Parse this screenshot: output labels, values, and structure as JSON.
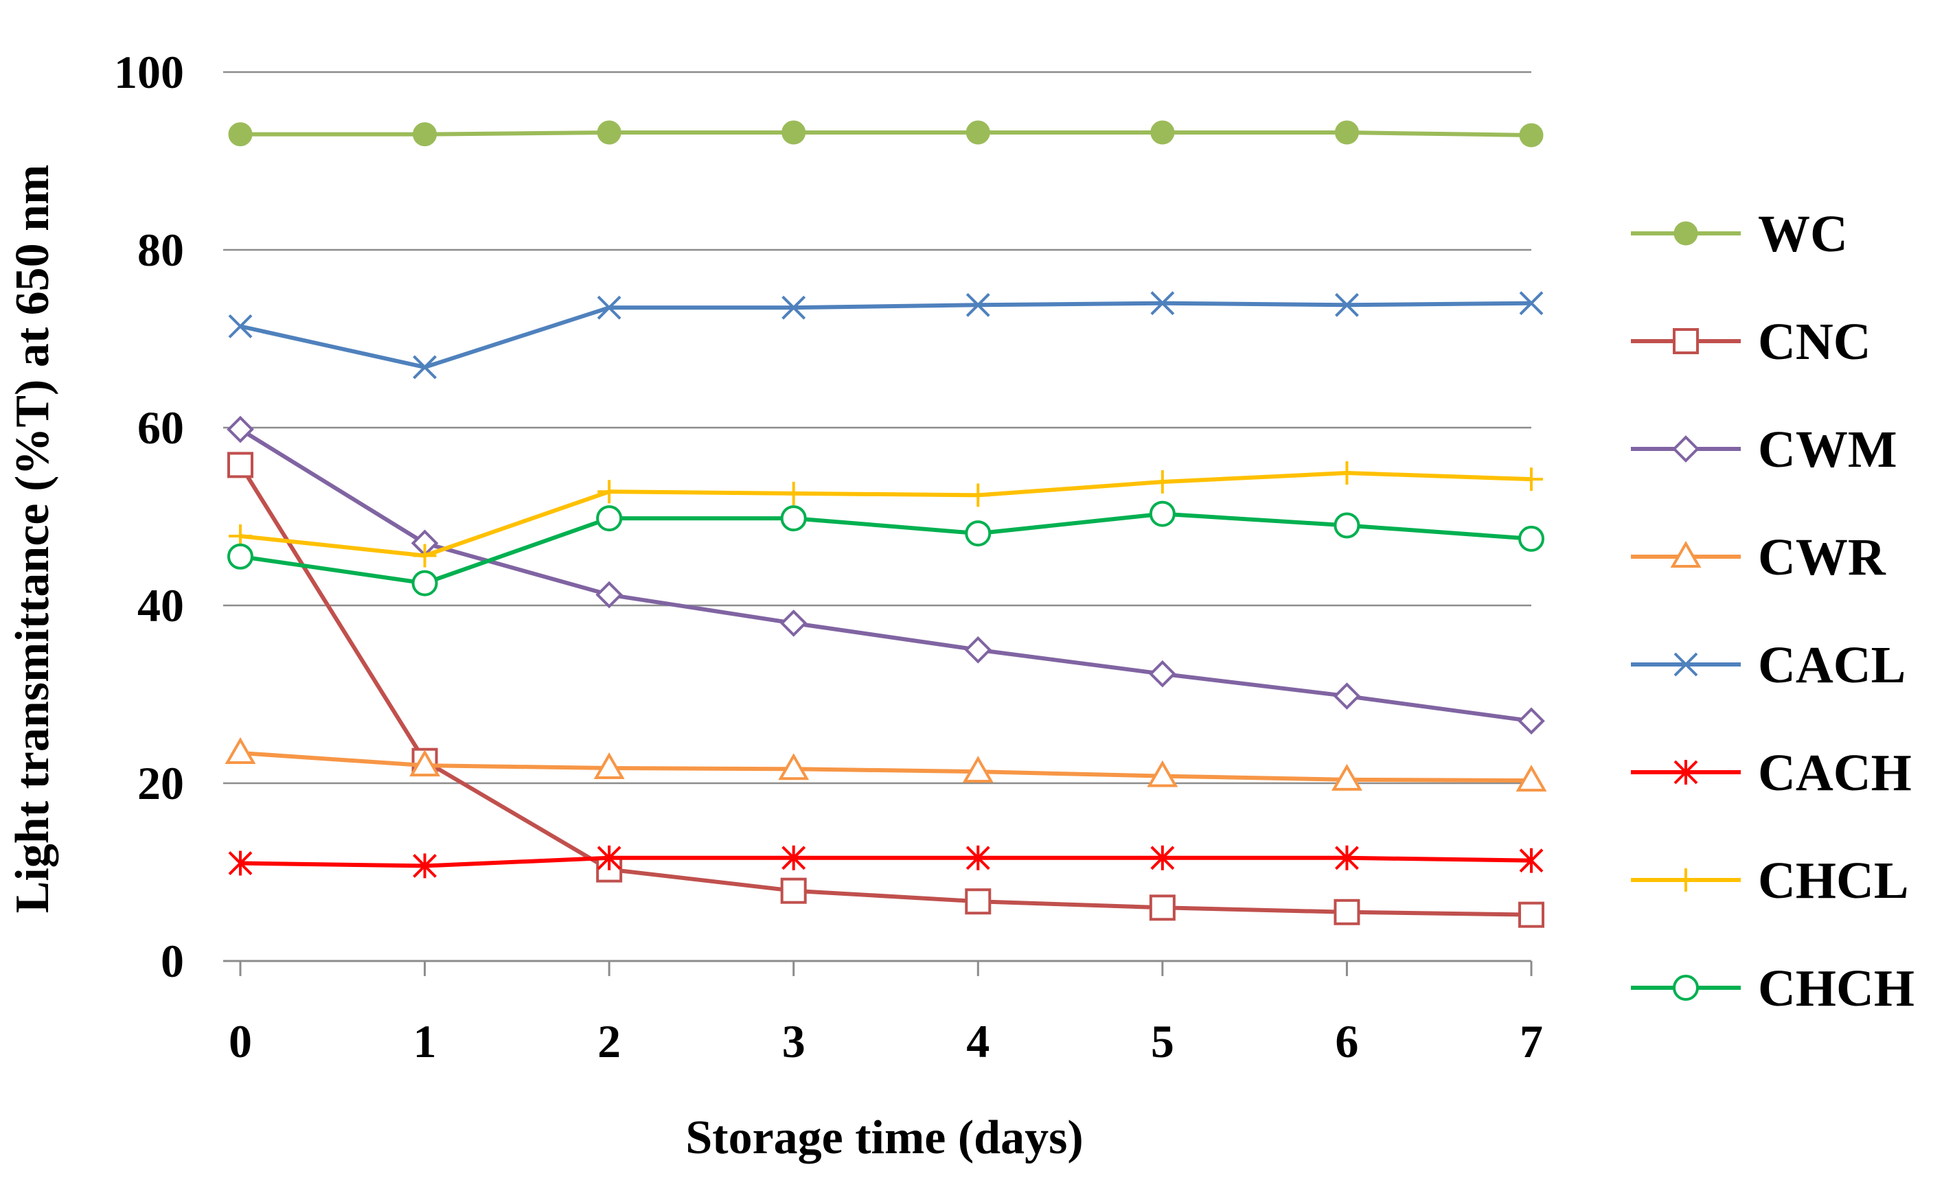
{
  "chart_data": {
    "type": "line",
    "title": "",
    "xlabel": "Storage time (days)",
    "ylabel": "Light transmittance (%T) at 650 nm",
    "x": [
      0,
      1,
      2,
      3,
      4,
      5,
      6,
      7
    ],
    "xlim": [
      0,
      7
    ],
    "ylim": [
      0,
      100
    ],
    "yticks": [
      0,
      20,
      40,
      60,
      80,
      100
    ],
    "grid": true,
    "legend_position": "right",
    "series": [
      {
        "name": "WC",
        "color": "#9BBB59",
        "marker": "filled-circle",
        "values": [
          93,
          93,
          93.2,
          93.2,
          93.2,
          93.2,
          93.2,
          92.9
        ]
      },
      {
        "name": "CNC",
        "color": "#C0504D",
        "marker": "square",
        "values": [
          55.8,
          22.5,
          10.3,
          7.9,
          6.7,
          6.0,
          5.5,
          5.2
        ]
      },
      {
        "name": "CWM",
        "color": "#8064A2",
        "marker": "diamond",
        "values": [
          59.8,
          47.0,
          41.2,
          38.0,
          35.0,
          32.3,
          29.8,
          27.0
        ]
      },
      {
        "name": "CWR",
        "color": "#F79646",
        "marker": "triangle",
        "values": [
          23.4,
          22.0,
          21.7,
          21.6,
          21.3,
          20.8,
          20.4,
          20.3
        ]
      },
      {
        "name": "CACL",
        "color": "#4F81BD",
        "marker": "x",
        "values": [
          71.4,
          66.8,
          73.5,
          73.5,
          73.8,
          74.0,
          73.8,
          74.0
        ]
      },
      {
        "name": "CACH",
        "color": "#FF0000",
        "marker": "star",
        "values": [
          11.0,
          10.7,
          11.6,
          11.6,
          11.6,
          11.6,
          11.6,
          11.3
        ]
      },
      {
        "name": "CHCL",
        "color": "#FFC000",
        "marker": "plus",
        "values": [
          47.8,
          45.6,
          52.8,
          52.6,
          52.4,
          53.9,
          54.9,
          54.2
        ]
      },
      {
        "name": "CHCH",
        "color": "#00B050",
        "marker": "open-circle",
        "values": [
          45.5,
          42.5,
          49.8,
          49.8,
          48.1,
          50.3,
          49.0,
          47.5
        ]
      }
    ]
  }
}
